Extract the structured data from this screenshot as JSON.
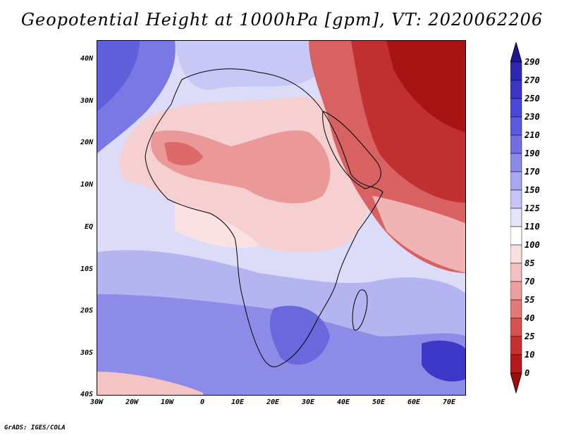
{
  "title": "Geopotential Height at 1000hPa [gpm], VT: 2020062206",
  "footer": "GrADS: IGES/COLA",
  "map": {
    "variable": "Geopotential Height at 1000hPa",
    "units": "gpm",
    "valid_time": "2020062206",
    "lon_range": [
      -30,
      75
    ],
    "lat_range": [
      -40,
      45
    ],
    "lat_ticks": [
      {
        "value": 40,
        "label": "40N"
      },
      {
        "value": 30,
        "label": "30N"
      },
      {
        "value": 20,
        "label": "20N"
      },
      {
        "value": 10,
        "label": "10N"
      },
      {
        "value": 0,
        "label": "EQ"
      },
      {
        "value": -10,
        "label": "10S"
      },
      {
        "value": -20,
        "label": "20S"
      },
      {
        "value": -30,
        "label": "30S"
      },
      {
        "value": -40,
        "label": "40S"
      }
    ],
    "lon_ticks": [
      {
        "value": -30,
        "label": "30W"
      },
      {
        "value": -20,
        "label": "20W"
      },
      {
        "value": -10,
        "label": "10W"
      },
      {
        "value": 0,
        "label": "0"
      },
      {
        "value": 10,
        "label": "10E"
      },
      {
        "value": 20,
        "label": "20E"
      },
      {
        "value": 30,
        "label": "30E"
      },
      {
        "value": 40,
        "label": "40E"
      },
      {
        "value": 50,
        "label": "50E"
      },
      {
        "value": 60,
        "label": "60E"
      },
      {
        "value": 70,
        "label": "70E"
      }
    ]
  },
  "colorbar": {
    "levels": [
      "290",
      "270",
      "250",
      "230",
      "210",
      "190",
      "170",
      "150",
      "125",
      "110",
      "100",
      "85",
      "70",
      "55",
      "40",
      "25",
      "10",
      "0"
    ],
    "colors": [
      "#1e1496",
      "#2e26b4",
      "#3a34c8",
      "#4a46d6",
      "#5c5ade",
      "#7070e4",
      "#8a8aea",
      "#a8a8f0",
      "#c6c6f6",
      "#e4e4fb",
      "#ffffff",
      "#fbe0e0",
      "#f5c0c0",
      "#eea0a0",
      "#e47878",
      "#d85050",
      "#c83030",
      "#b41818",
      "#a00a0a"
    ]
  }
}
